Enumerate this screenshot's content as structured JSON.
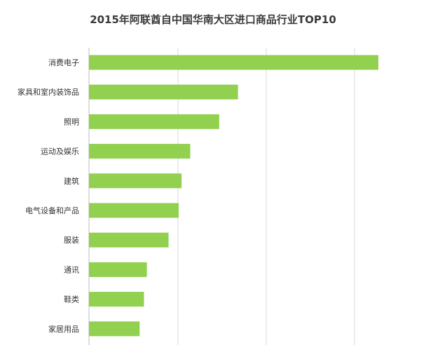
{
  "chart_data": {
    "type": "bar",
    "orientation": "horizontal",
    "title": "2015年阿联酋自中国华南大区进口商品行业TOP10",
    "categories": [
      "消费电子",
      "家具和室内装饰品",
      "照明",
      "运动及娱乐",
      "建筑",
      "电气设备和产品",
      "服装",
      "通讯",
      "鞋类",
      "家居用品"
    ],
    "values": [
      100,
      51.5,
      45,
      35,
      32,
      31,
      27.5,
      20,
      19,
      17.5
    ],
    "xlim": [
      0,
      100
    ],
    "grid": true,
    "colors": {
      "bar": "#92d050",
      "grid": "#d9d9d9",
      "axis": "#bfbfbf",
      "text": "#333333"
    }
  }
}
